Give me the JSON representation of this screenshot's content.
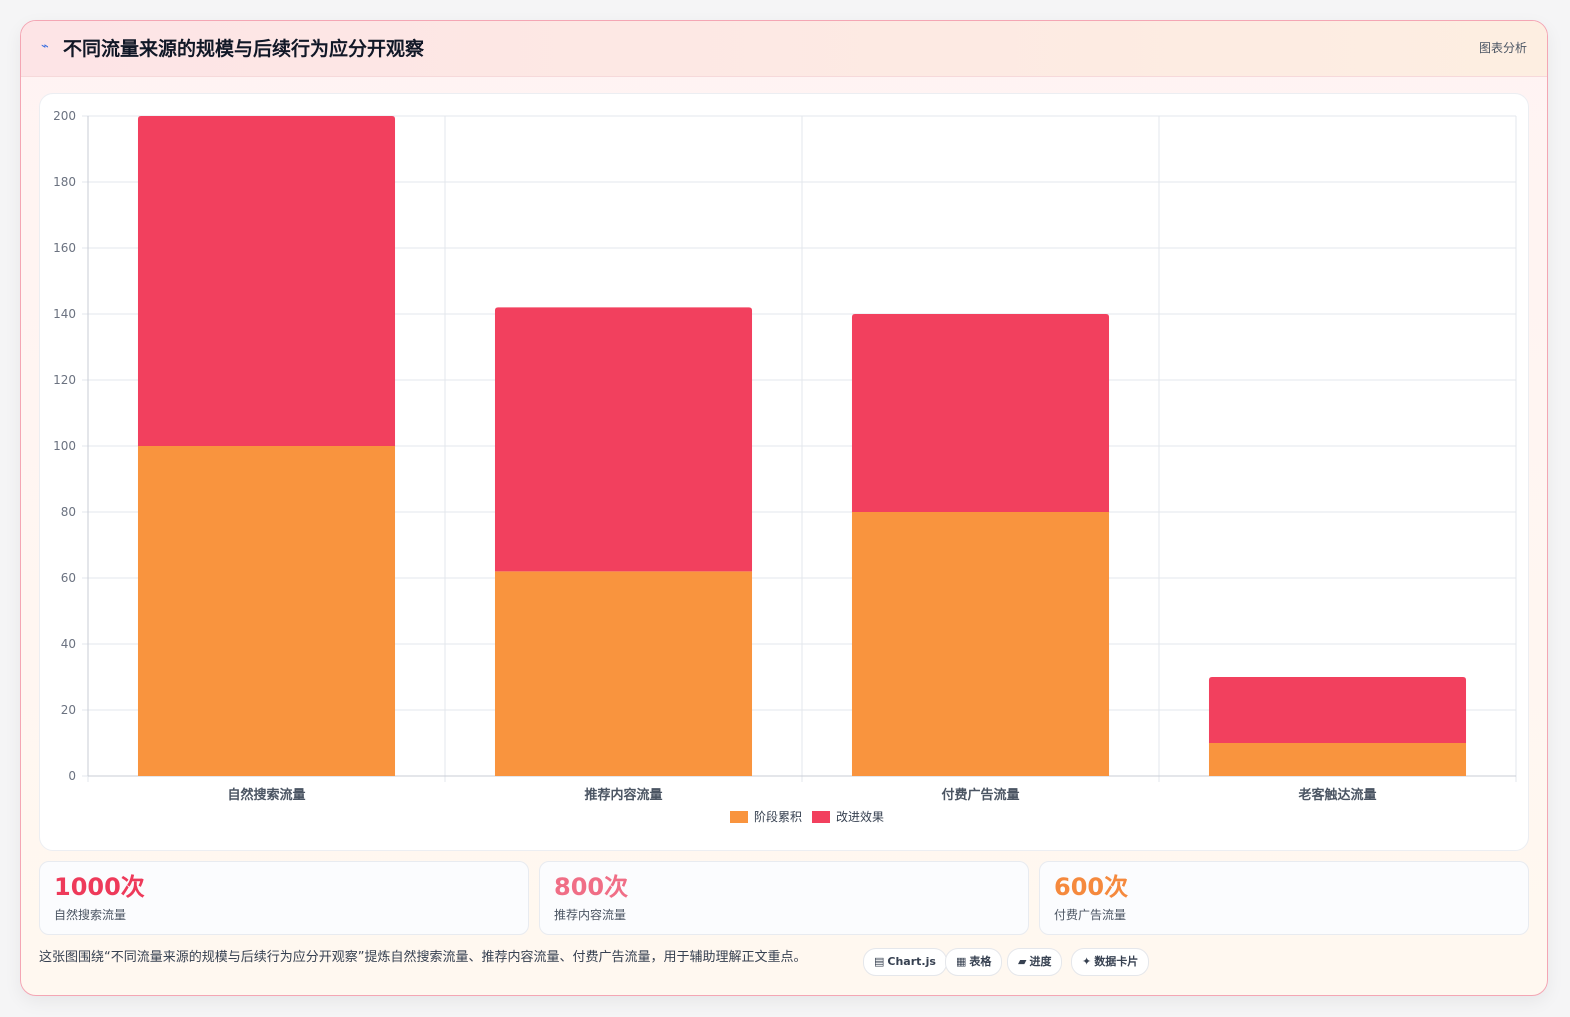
{
  "header": {
    "icon": "bolt-icon",
    "title": "不同流量来源的规模与后续行为应分开观察",
    "badge": "图表分析"
  },
  "colors": {
    "series_stage": "#f9943e",
    "series_improve": "#f2405e",
    "stat_1": "#ee3a5a",
    "stat_2": "#f06e86",
    "stat_3": "#f5893d"
  },
  "chart_data": {
    "type": "bar",
    "stacked": true,
    "categories": [
      "自然搜索流量",
      "推荐内容流量",
      "付费广告流量",
      "老客触达流量"
    ],
    "series": [
      {
        "name": "阶段累积",
        "values": [
          100,
          62,
          80,
          10
        ]
      },
      {
        "name": "改进效果",
        "values": [
          100,
          80,
          60,
          20
        ]
      }
    ],
    "ylim": [
      0,
      200
    ],
    "yticks": [
      0,
      20,
      40,
      60,
      80,
      100,
      120,
      140,
      160,
      180,
      200
    ],
    "grid": true,
    "legend": "bottom-center"
  },
  "stats": [
    {
      "value": "1000次",
      "label": "自然搜索流量"
    },
    {
      "value": "800次",
      "label": "推荐内容流量"
    },
    {
      "value": "600次",
      "label": "付费广告流量"
    }
  ],
  "footer": {
    "note": "这张图围绕“不同流量来源的规模与后续行为应分开观察”提炼自然搜索流量、推荐内容流量、付费广告流量，用于辅助理解正文重点。",
    "tags": [
      {
        "icon": "chart-icon",
        "glyph": "▤",
        "label": "Chart.js"
      },
      {
        "icon": "table-icon",
        "glyph": "▦",
        "label": "表格"
      },
      {
        "icon": "progress-icon",
        "glyph": "▰",
        "label": "进度"
      },
      {
        "icon": "sparkle-icon",
        "glyph": "✦",
        "label": "数据卡片"
      }
    ]
  }
}
